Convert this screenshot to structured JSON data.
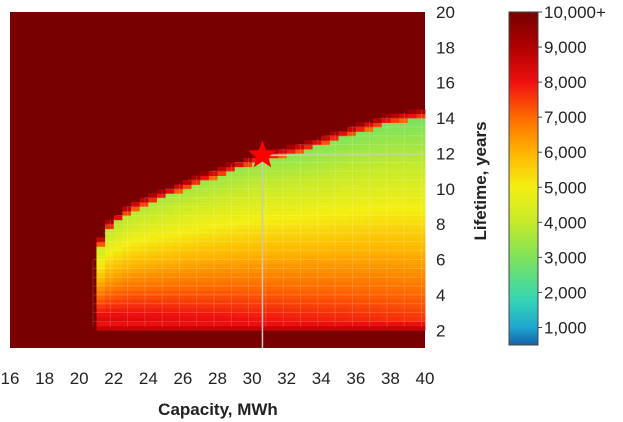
{
  "chart_data": {
    "type": "heatmap",
    "title": "",
    "xlabel": "Capacity, MWh",
    "ylabel": "Lifetime, years",
    "xlim": [
      16,
      40
    ],
    "ylim": [
      1,
      20
    ],
    "x_ticks": [
      "16",
      "18",
      "20",
      "22",
      "24",
      "26",
      "28",
      "30",
      "32",
      "34",
      "36",
      "38",
      "40"
    ],
    "y_ticks": [
      "2",
      "4",
      "6",
      "8",
      "10",
      "12",
      "14",
      "16",
      "18",
      "20"
    ],
    "colorbar": {
      "range": [
        500,
        10000
      ],
      "tick_values": [
        1000,
        2000,
        3000,
        4000,
        5000,
        6000,
        7000,
        8000,
        9000,
        10000
      ],
      "tick_labels": [
        "1,000",
        "2,000",
        "3,000",
        "4,000",
        "5,000",
        "6,000",
        "7,000",
        "8,000",
        "9,000",
        "10,000+"
      ],
      "colors": [
        {
          "value": 500,
          "color": "#1560a8"
        },
        {
          "value": 1000,
          "color": "#1ea6cf"
        },
        {
          "value": 1800,
          "color": "#35d6b4"
        },
        {
          "value": 3000,
          "color": "#7fe35a"
        },
        {
          "value": 4000,
          "color": "#c6ea2a"
        },
        {
          "value": 5000,
          "color": "#f4ef12"
        },
        {
          "value": 6000,
          "color": "#ffb400"
        },
        {
          "value": 7000,
          "color": "#ff6a00"
        },
        {
          "value": 8000,
          "color": "#f01010"
        },
        {
          "value": 9000,
          "color": "#b00000"
        },
        {
          "value": 10000,
          "color": "#780000"
        }
      ]
    },
    "feasible_region": {
      "x_min": 20.8,
      "upper_boundary": [
        {
          "x": 20.8,
          "y": 6.0
        },
        {
          "x": 21.5,
          "y": 8.0
        },
        {
          "x": 23,
          "y": 9.2
        },
        {
          "x": 25,
          "y": 10.0
        },
        {
          "x": 27,
          "y": 10.8
        },
        {
          "x": 29,
          "y": 11.5
        },
        {
          "x": 30.5,
          "y": 12.0
        },
        {
          "x": 33,
          "y": 12.6
        },
        {
          "x": 36,
          "y": 13.6
        },
        {
          "x": 38,
          "y": 14.2
        },
        {
          "x": 40,
          "y": 14.5
        }
      ]
    },
    "optimum": {
      "x": 30.6,
      "y": 11.9
    },
    "reference_lines": {
      "x": 30.6,
      "y": 11.9
    }
  },
  "colors": {
    "background": "#780000",
    "marker": "#ff0000",
    "reference_line": "#c8c8c8"
  }
}
